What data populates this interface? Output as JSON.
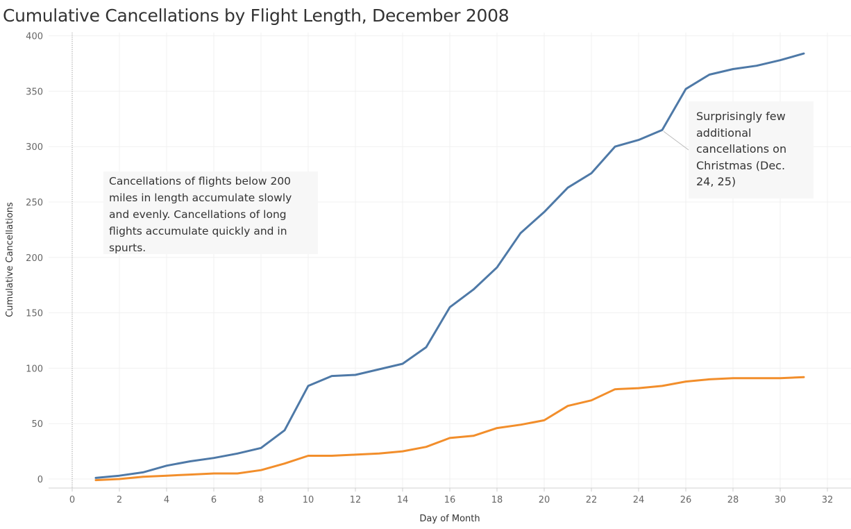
{
  "chart_data": {
    "type": "line",
    "title": "Cumulative Cancellations by Flight Length, December 2008",
    "xlabel": "Day of Month",
    "ylabel": "Cumulative Cancellations",
    "xlim": [
      -2,
      33
    ],
    "ylim": [
      -10,
      405
    ],
    "x_ticks": [
      "0",
      "2",
      "4",
      "6",
      "8",
      "10",
      "12",
      "14",
      "16",
      "18",
      "20",
      "22",
      "24",
      "26",
      "28",
      "30",
      "32"
    ],
    "y_ticks": [
      "0",
      "50",
      "100",
      "150",
      "200",
      "250",
      "300",
      "350",
      "400"
    ],
    "grid": true,
    "x": [
      1,
      2,
      3,
      4,
      5,
      6,
      7,
      8,
      9,
      10,
      11,
      12,
      13,
      14,
      15,
      16,
      17,
      18,
      19,
      20,
      21,
      22,
      23,
      24,
      25,
      26,
      27,
      28,
      29,
      30,
      31
    ],
    "series": [
      {
        "color": "#4e79a7",
        "values": [
          1,
          3,
          6,
          12,
          16,
          19,
          23,
          28,
          44,
          84,
          93,
          94,
          99,
          104,
          119,
          155,
          171,
          191,
          222,
          241,
          263,
          276,
          300,
          306,
          315,
          352,
          365,
          370,
          373,
          378,
          384
        ]
      },
      {
        "color": "#f28e2b",
        "values": [
          -1,
          0,
          2,
          3,
          4,
          5,
          5,
          8,
          14,
          21,
          21,
          22,
          23,
          25,
          29,
          37,
          39,
          46,
          49,
          53,
          66,
          71,
          81,
          82,
          84,
          88,
          90,
          91,
          91,
          91,
          92
        ]
      }
    ],
    "annotations": [
      {
        "text": "Cancellations of flights below 200 miles in length accumulate slowly and evenly. Cancellations of long flights accumulate quickly and in spurts.",
        "x": 1.3,
        "y": 245
      },
      {
        "text": "Surprisingly few additional cancellations on Christmas (Dec. 24, 25)",
        "x": 25,
        "y": 315
      }
    ]
  }
}
